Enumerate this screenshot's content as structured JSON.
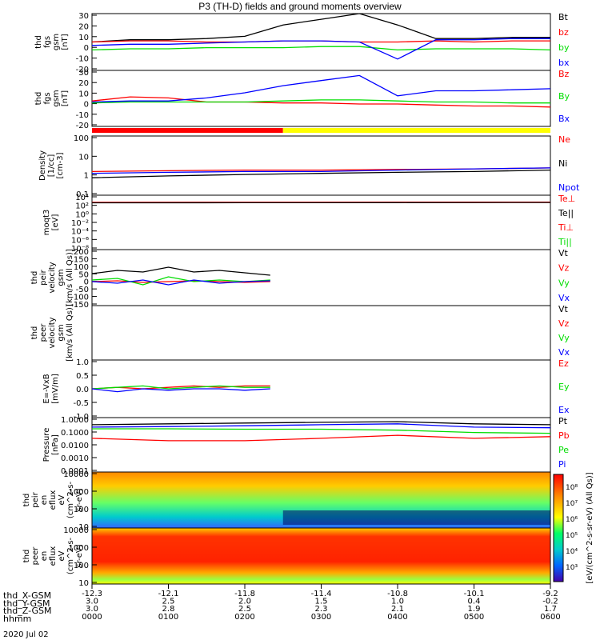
{
  "title": "P3 (TH-D) fields and ground moments overview",
  "date": "2020 Jul 02",
  "colors": {
    "black": "#000000",
    "red": "#ff0000",
    "green": "#00dd00",
    "blue": "#0000ff",
    "yellow": "#ffff00"
  },
  "chart_data": [
    {
      "type": "line",
      "ylabel": [
        "thd",
        "fgs",
        "gsm",
        "[nT]"
      ],
      "yticks": [
        "30",
        "20",
        "10",
        "0",
        "-10",
        "-20"
      ],
      "ylim": [
        -20,
        30
      ],
      "legend": [
        {
          "name": "Bt",
          "color": "black"
        },
        {
          "name": "bz",
          "color": "red"
        },
        {
          "name": "by",
          "color": "green"
        },
        {
          "name": "bx",
          "color": "blue"
        }
      ],
      "x": [
        0,
        30,
        60,
        90,
        120,
        150,
        180,
        210,
        240,
        270,
        300,
        330,
        360
      ],
      "series": [
        {
          "name": "Bt",
          "values": [
            5,
            7,
            7,
            8,
            10,
            20,
            25,
            30,
            20,
            8,
            8,
            9,
            9
          ]
        },
        {
          "name": "bz",
          "values": [
            5,
            6,
            6,
            5,
            5,
            6,
            6,
            5,
            5,
            6,
            5,
            6,
            6
          ]
        },
        {
          "name": "by",
          "values": [
            -2,
            -1,
            -1,
            0,
            0,
            0,
            1,
            1,
            -2,
            -1,
            -1,
            -1,
            -2
          ]
        },
        {
          "name": "bx",
          "values": [
            2,
            3,
            3,
            4,
            5,
            6,
            6,
            5,
            -10,
            7,
            7,
            8,
            8
          ]
        }
      ]
    },
    {
      "type": "line",
      "ylabel": [
        "thd",
        "fgs",
        "gsm",
        "[nT]"
      ],
      "yticks": [
        "30",
        "20",
        "10",
        "0",
        "-10",
        "-20"
      ],
      "ylim": [
        -25,
        30
      ],
      "legend": [
        {
          "name": "Bz",
          "color": "red"
        },
        {
          "name": "By",
          "color": "green"
        },
        {
          "name": "Bx",
          "color": "blue"
        }
      ],
      "x": [
        0,
        30,
        60,
        90,
        120,
        150,
        180,
        210,
        240,
        270,
        300,
        330,
        360
      ],
      "series": [
        {
          "name": "Bz",
          "values": [
            0,
            4,
            3,
            -1,
            -1,
            -2,
            -2,
            -3,
            -3,
            -4,
            -5,
            -5,
            -6
          ]
        },
        {
          "name": "By",
          "values": [
            -2,
            -1,
            -1,
            -1,
            -1,
            0,
            1,
            1,
            0,
            -1,
            -1,
            -2,
            -2
          ]
        },
        {
          "name": "Bx",
          "values": [
            -1,
            0,
            0,
            3,
            8,
            15,
            20,
            25,
            5,
            10,
            10,
            11,
            12
          ]
        }
      ]
    },
    {
      "type": "heatmap",
      "ylabel": [
        "Density",
        "[1/cc]",
        "[cm-3]"
      ],
      "yticks": [
        "100",
        "10",
        "1",
        "0.1"
      ],
      "ylim": [
        0.01,
        100
      ],
      "legend": [
        {
          "name": "Ne",
          "color": "red"
        },
        {
          "name": "Ni",
          "color": "black"
        },
        {
          "name": "Npot",
          "color": "blue"
        }
      ],
      "x": [
        0,
        60,
        120,
        180,
        240,
        300,
        360
      ],
      "series": [
        {
          "name": "Ne",
          "values": [
            0.4,
            0.45,
            0.5,
            0.5,
            0.55,
            0.6,
            0.7
          ]
        },
        {
          "name": "Ni",
          "values": [
            0.15,
            0.2,
            0.25,
            0.3,
            0.35,
            0.4,
            0.5
          ]
        },
        {
          "name": "Npot",
          "values": [
            0.3,
            0.35,
            0.4,
            0.4,
            0.5,
            0.6,
            0.7
          ]
        }
      ]
    },
    {
      "type": "line",
      "ylabel": [
        "moqt3",
        "[eV]"
      ],
      "yticks": [
        "10⁴",
        "10²",
        "10⁰",
        "10⁻²",
        "10⁻⁴",
        "10⁻⁶",
        "10⁻⁸"
      ],
      "ylim": [
        1e-08,
        100000.0
      ],
      "legend": [
        {
          "name": "Te⊥",
          "color": "red"
        },
        {
          "name": "Te||",
          "color": "black"
        },
        {
          "name": "Ti⊥",
          "color": "red"
        },
        {
          "name": "Ti||",
          "color": "green"
        }
      ],
      "x": [
        0,
        120,
        240,
        360
      ],
      "series": [
        {
          "name": "Te⊥",
          "values": [
            2000,
            2100,
            2200,
            2300
          ]
        },
        {
          "name": "Te||",
          "values": [
            1500,
            1600,
            1700,
            1800
          ]
        }
      ]
    },
    {
      "type": "line",
      "ylabel": [
        "thd",
        "peir",
        "velocity",
        "gsm",
        "[km/s (All Qs)]"
      ],
      "yticks": [
        "200",
        "150",
        "100",
        "50",
        "0",
        "-50",
        "-100",
        "-150"
      ],
      "ylim": [
        -150,
        200
      ],
      "legend": [
        {
          "name": "Vt",
          "color": "black"
        },
        {
          "name": "Vz",
          "color": "red"
        },
        {
          "name": "Vy",
          "color": "green"
        },
        {
          "name": "Vx",
          "color": "blue"
        }
      ],
      "x": [
        0,
        20,
        40,
        60,
        80,
        100,
        120,
        140
      ],
      "series": [
        {
          "name": "Vt",
          "values": [
            50,
            70,
            60,
            90,
            60,
            70,
            55,
            40
          ]
        },
        {
          "name": "Vz",
          "values": [
            0,
            5,
            -5,
            0,
            5,
            0,
            -5,
            0
          ]
        },
        {
          "name": "Vy",
          "values": [
            10,
            20,
            -20,
            30,
            0,
            10,
            0,
            10
          ]
        },
        {
          "name": "Vx",
          "values": [
            0,
            -10,
            10,
            -20,
            10,
            -10,
            0,
            5
          ]
        }
      ]
    },
    {
      "type": "line",
      "ylabel": [
        "thd",
        "peer",
        "velocity",
        "gsm",
        "[km/s (All Qs)]"
      ],
      "yticks": [],
      "ylim": [
        0,
        1
      ],
      "legend": [
        {
          "name": "Vt",
          "color": "black"
        },
        {
          "name": "Vz",
          "color": "red"
        },
        {
          "name": "Vy",
          "color": "green"
        },
        {
          "name": "Vx",
          "color": "blue"
        }
      ],
      "x": [],
      "series": []
    },
    {
      "type": "line",
      "ylabel": [
        "E=-VxB",
        "[mV/m]"
      ],
      "yticks": [
        "1.0",
        "0.5",
        "0.0",
        "-0.5",
        "-1.0"
      ],
      "ylim": [
        -1,
        1
      ],
      "legend": [
        {
          "name": "Ez",
          "color": "red"
        },
        {
          "name": "Ey",
          "color": "green"
        },
        {
          "name": "Ex",
          "color": "blue"
        }
      ],
      "x": [
        0,
        20,
        40,
        60,
        80,
        100,
        120,
        140
      ],
      "series": [
        {
          "name": "Ez",
          "values": [
            0.0,
            0.05,
            0.0,
            0.05,
            0.1,
            0.05,
            0.1,
            0.1
          ]
        },
        {
          "name": "Ey",
          "values": [
            0.0,
            0.05,
            0.1,
            0.0,
            0.05,
            0.1,
            0.05,
            0.05
          ]
        },
        {
          "name": "Ex",
          "values": [
            0.0,
            -0.1,
            0.0,
            -0.05,
            0.0,
            0.0,
            -0.05,
            0.0
          ]
        }
      ]
    },
    {
      "type": "line",
      "ylabel": [
        "Pressure",
        "[nPa]"
      ],
      "yticks": [
        "1.0000",
        "0.1000",
        "0.0100",
        "0.0010",
        "0.0001"
      ],
      "ylim": [
        0.0001,
        1
      ],
      "legend": [
        {
          "name": "Pt",
          "color": "black"
        },
        {
          "name": "Pb",
          "color": "red"
        },
        {
          "name": "Pe",
          "color": "green"
        },
        {
          "name": "Pi",
          "color": "blue"
        }
      ],
      "x": [
        0,
        60,
        120,
        180,
        240,
        300,
        360
      ],
      "series": [
        {
          "name": "Pt",
          "values": [
            0.3,
            0.35,
            0.4,
            0.45,
            0.5,
            0.35,
            0.3
          ]
        },
        {
          "name": "Pb",
          "values": [
            0.03,
            0.02,
            0.02,
            0.03,
            0.05,
            0.03,
            0.04
          ]
        },
        {
          "name": "Pe",
          "values": [
            0.15,
            0.15,
            0.14,
            0.14,
            0.12,
            0.08,
            0.07
          ]
        },
        {
          "name": "Pi",
          "values": [
            0.2,
            0.22,
            0.25,
            0.3,
            0.35,
            0.2,
            0.18
          ]
        }
      ]
    },
    {
      "type": "heatmap",
      "ylabel": [
        "thd",
        "peir",
        "en",
        "eflux",
        "eV",
        "(cm^2-s-",
        "sr-eV)"
      ],
      "yticks": [
        "10000",
        "1000",
        "100",
        "10"
      ],
      "ylim": [
        5,
        30000
      ],
      "legend": [],
      "x": [],
      "series": []
    },
    {
      "type": "heatmap",
      "ylabel": [
        "thd",
        "peer",
        "en",
        "eflux",
        "eV",
        "(cm^2-s-",
        "sr-eV)"
      ],
      "yticks": [
        "10000",
        "1000",
        "100",
        "10"
      ],
      "ylim": [
        5,
        30000
      ],
      "legend": [],
      "x": [],
      "series": []
    }
  ],
  "colorbar": {
    "label": "[eV/(cm^2-s-sr-eV) (All Qs)]",
    "ticks": [
      "10⁸",
      "10⁷",
      "10⁶",
      "10⁵",
      "10⁴",
      "10³"
    ]
  },
  "xaxis": {
    "row_labels": [
      "thd_X-GSM",
      "thd_Y-GSM",
      "thd_Z-GSM",
      "hhmm"
    ],
    "columns": [
      [
        "-12.3",
        "3.0",
        "3.0",
        "0000"
      ],
      [
        "-12.1",
        "2.5",
        "2.8",
        "0100"
      ],
      [
        "-11.8",
        "2.0",
        "2.5",
        "0200"
      ],
      [
        "-11.4",
        "1.5",
        "2.3",
        "0300"
      ],
      [
        "-10.8",
        "1.0",
        "2.1",
        "0400"
      ],
      [
        "-10.1",
        "0.4",
        "1.9",
        "0500"
      ],
      [
        "-9.2",
        "-0.2",
        "1.7",
        "0600"
      ]
    ]
  }
}
